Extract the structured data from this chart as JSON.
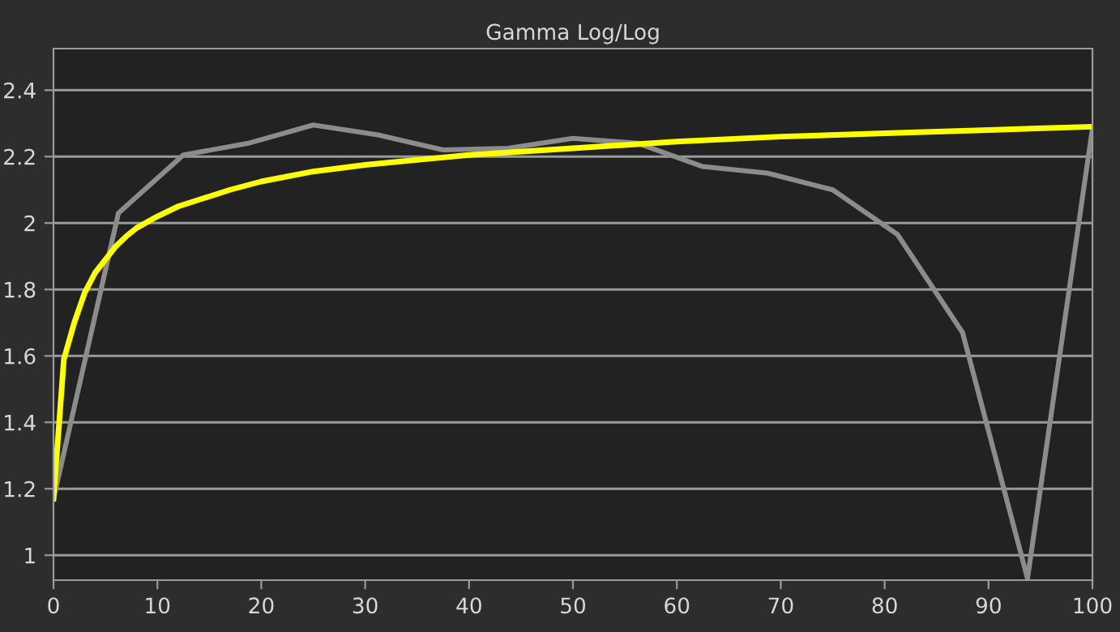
{
  "chart_data": {
    "type": "line",
    "title": "Gamma Log/Log",
    "xlim": [
      0,
      100
    ],
    "xticks": [
      0,
      10,
      20,
      30,
      40,
      50,
      60,
      70,
      80,
      90,
      100
    ],
    "ylim": [
      0.925,
      2.525
    ],
    "yticks": [
      1,
      1.2,
      1.4,
      1.6,
      1.8,
      2,
      2.2,
      2.4
    ],
    "grid": "y",
    "marker": "none",
    "line_style": "solid",
    "series": [
      {
        "color": "#8c8c8c",
        "x": [
          0,
          6.25,
          12.5,
          18.75,
          25,
          31.25,
          37.5,
          43.75,
          50,
          56.25,
          62.5,
          68.75,
          75,
          81.25,
          87.5,
          93.75,
          100
        ],
        "values": [
          1.17,
          2.03,
          2.205,
          2.24,
          2.295,
          2.265,
          2.22,
          2.225,
          2.255,
          2.24,
          2.17,
          2.15,
          2.1,
          1.965,
          1.67,
          0.93,
          2.285
        ]
      },
      {
        "color": "#ffff00",
        "x": [
          0,
          1,
          2,
          3,
          4,
          5,
          6,
          7,
          8,
          10,
          12,
          14,
          17,
          20,
          25,
          30,
          35,
          40,
          50,
          60,
          70,
          80,
          90,
          100
        ],
        "values": [
          1.17,
          1.59,
          1.7,
          1.79,
          1.85,
          1.89,
          1.93,
          1.96,
          1.985,
          2.02,
          2.05,
          2.07,
          2.1,
          2.125,
          2.155,
          2.175,
          2.19,
          2.205,
          2.225,
          2.245,
          2.26,
          2.27,
          2.28,
          2.29
        ]
      }
    ]
  }
}
